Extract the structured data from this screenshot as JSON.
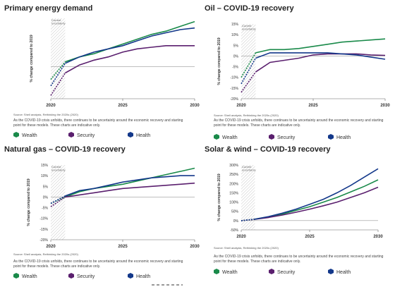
{
  "legend_colors": {
    "Wealth": "#1a8a4a",
    "Security": "#5a1f6e",
    "Health": "#13388a"
  },
  "panels": [
    {
      "title": "Primary energy demand",
      "source": "Source: Shell analysis, Rethinking the 2020s (2020)",
      "note": "As the COVID-19 crisis unfolds, there continues to be uncertainty around the economic recovery and starting point for these models. These charts are indicative only.",
      "legend": [
        "Wealth",
        "Security",
        "Health"
      ],
      "chart_data": {
        "type": "line",
        "ylabel": "% change compared to 2019",
        "yticks": [],
        "ylim": [
          -10,
          15
        ],
        "xlim": [
          2020,
          2030
        ],
        "xticks": [
          "2020",
          "2025",
          "2030"
        ],
        "xtick_values": [
          2020,
          2025,
          2030
        ],
        "zero_line": true,
        "annotation": "Current uncertainty",
        "series": [
          {
            "name": "Wealth",
            "x": [
              2020,
              2021,
              2022,
              2023,
              2024,
              2025,
              2026,
              2027,
              2028,
              2029,
              2030
            ],
            "y": [
              -4,
              1.5,
              3,
              4,
              5.5,
              7,
              8.5,
              10,
              11,
              12.5,
              14
            ]
          },
          {
            "name": "Security",
            "x": [
              2020,
              2021,
              2022,
              2023,
              2024,
              2025,
              2026,
              2027,
              2028,
              2029,
              2030
            ],
            "y": [
              -9,
              -2,
              0.5,
              2,
              3,
              4.5,
              5.5,
              6,
              6.5,
              6.5,
              6.5
            ]
          },
          {
            "name": "Health",
            "x": [
              2020,
              2021,
              2022,
              2023,
              2024,
              2025,
              2026,
              2027,
              2028,
              2029,
              2030
            ],
            "y": [
              -6,
              1,
              3,
              4.5,
              5.5,
              6.5,
              8,
              9.5,
              10.5,
              11.5,
              12
            ]
          }
        ]
      }
    },
    {
      "title": "Oil – COVID-19 recovery",
      "source": "Source: Shell analysis, Rethinking the 2020s (2020)",
      "note": "As the COVID-19 crisis unfolds, there continues to be uncertainty around the economic recovery and starting point for these models. These charts are indicative only.",
      "legend": [
        "Wealth",
        "Security",
        "Health"
      ],
      "chart_data": {
        "type": "line",
        "ylabel": "% change compared to 2019",
        "yticks": [
          "15%",
          "10%",
          "5%",
          "0%",
          "-5%",
          "-10%",
          "-15%",
          "-20%"
        ],
        "ytick_values": [
          15,
          10,
          5,
          0,
          -5,
          -10,
          -15,
          -20
        ],
        "ylim": [
          -20,
          15
        ],
        "xlim": [
          2020,
          2030
        ],
        "xticks": [
          "2020",
          "2025",
          "2030"
        ],
        "xtick_values": [
          2020,
          2025,
          2030
        ],
        "zero_line": true,
        "annotation": "Current uncertainty",
        "series": [
          {
            "name": "Wealth",
            "x": [
              2020,
              2021,
              2022,
              2023,
              2024,
              2025,
              2026,
              2027,
              2028,
              2029,
              2030
            ],
            "y": [
              -10,
              1.5,
              3,
              3,
              3.5,
              4.5,
              5.5,
              6.5,
              7,
              7.5,
              8
            ]
          },
          {
            "name": "Security",
            "x": [
              2020,
              2021,
              2022,
              2023,
              2024,
              2025,
              2026,
              2027,
              2028,
              2029,
              2030
            ],
            "y": [
              -17,
              -7.5,
              -3,
              -2,
              -1,
              0.5,
              1,
              1,
              1,
              0.5,
              0.3
            ]
          },
          {
            "name": "Health",
            "x": [
              2020,
              2021,
              2022,
              2023,
              2024,
              2025,
              2026,
              2027,
              2028,
              2029,
              2030
            ],
            "y": [
              -13,
              -1,
              1.5,
              1.5,
              1.5,
              1.5,
              1.5,
              1,
              0.5,
              -0.5,
              -1.5
            ]
          }
        ]
      }
    },
    {
      "title": "Natural gas – COVID-19 recovery",
      "source": "Source: Shell analysis, Rethinking the 2020s (2020)",
      "note": "As the COVID-19 crisis unfolds, there continues to be uncertainty around the economic recovery and starting point for these models. These charts are indicative only.",
      "legend": [
        "Wealth",
        "Security",
        "Health"
      ],
      "chart_data": {
        "type": "line",
        "ylabel": "% change compared to 2019",
        "yticks": [
          "15%",
          "10%",
          "5%",
          "0%",
          "-5%",
          "-10%",
          "-15%",
          "-20%"
        ],
        "ytick_values": [
          15,
          10,
          5,
          0,
          -5,
          -10,
          -15,
          -20
        ],
        "ylim": [
          -20,
          15
        ],
        "xlim": [
          2020,
          2030
        ],
        "xticks": [
          "2020",
          "2025",
          "2030"
        ],
        "xtick_values": [
          2020,
          2025,
          2030
        ],
        "zero_line": true,
        "annotation": "Current uncertainty",
        "series": [
          {
            "name": "Wealth",
            "x": [
              2020,
              2021,
              2022,
              2023,
              2024,
              2025,
              2026,
              2027,
              2028,
              2029,
              2030
            ],
            "y": [
              -3,
              0,
              2.5,
              4,
              5,
              6,
              7.5,
              9,
              10.5,
              12,
              13.5
            ]
          },
          {
            "name": "Security",
            "x": [
              2020,
              2021,
              2022,
              2023,
              2024,
              2025,
              2026,
              2027,
              2028,
              2029,
              2030
            ],
            "y": [
              -4.5,
              0,
              1,
              2,
              3,
              4,
              4.5,
              5,
              5.5,
              6,
              6.5
            ]
          },
          {
            "name": "Health",
            "x": [
              2020,
              2021,
              2022,
              2023,
              2024,
              2025,
              2026,
              2027,
              2028,
              2029,
              2030
            ],
            "y": [
              -3,
              0.5,
              3,
              4,
              5.5,
              7,
              8,
              9,
              9.5,
              10,
              10
            ]
          }
        ]
      }
    },
    {
      "title": "Solar & wind – COVID-19 recovery",
      "source": "Source: Shell analysis, Rethinking the 2020s (2020)",
      "note": "As the COVID-19 crisis unfolds, there continues to be uncertainty around the economic recovery and starting point for these models. These charts are indicative only.",
      "legend": [
        "Wealth",
        "Security",
        "Health"
      ],
      "chart_data": {
        "type": "line",
        "ylabel": "% change compared to 2019",
        "yticks": [
          "300%",
          "250%",
          "200%",
          "150%",
          "100%",
          "50%",
          "0%",
          "-50%"
        ],
        "ytick_values": [
          300,
          250,
          200,
          150,
          100,
          50,
          0,
          -50
        ],
        "ylim": [
          -50,
          300
        ],
        "xlim": [
          2020,
          2030
        ],
        "xticks": [
          "2020",
          "2025",
          "2030"
        ],
        "xtick_values": [
          2020,
          2025,
          2030
        ],
        "zero_line": true,
        "annotation": "Current uncertainty",
        "series": [
          {
            "name": "Wealth",
            "x": [
              2020,
              2021,
              2022,
              2023,
              2024,
              2025,
              2026,
              2027,
              2028,
              2029,
              2030
            ],
            "y": [
              0,
              8,
              20,
              35,
              55,
              75,
              100,
              125,
              155,
              185,
              220
            ]
          },
          {
            "name": "Security",
            "x": [
              2020,
              2021,
              2022,
              2023,
              2024,
              2025,
              2026,
              2027,
              2028,
              2029,
              2030
            ],
            "y": [
              0,
              7,
              17,
              30,
              45,
              62,
              80,
              100,
              125,
              150,
              180
            ]
          },
          {
            "name": "Health",
            "x": [
              2020,
              2021,
              2022,
              2023,
              2024,
              2025,
              2026,
              2027,
              2028,
              2029,
              2030
            ],
            "y": [
              0,
              8,
              22,
              40,
              62,
              88,
              115,
              150,
              190,
              235,
              280
            ]
          }
        ]
      }
    }
  ]
}
